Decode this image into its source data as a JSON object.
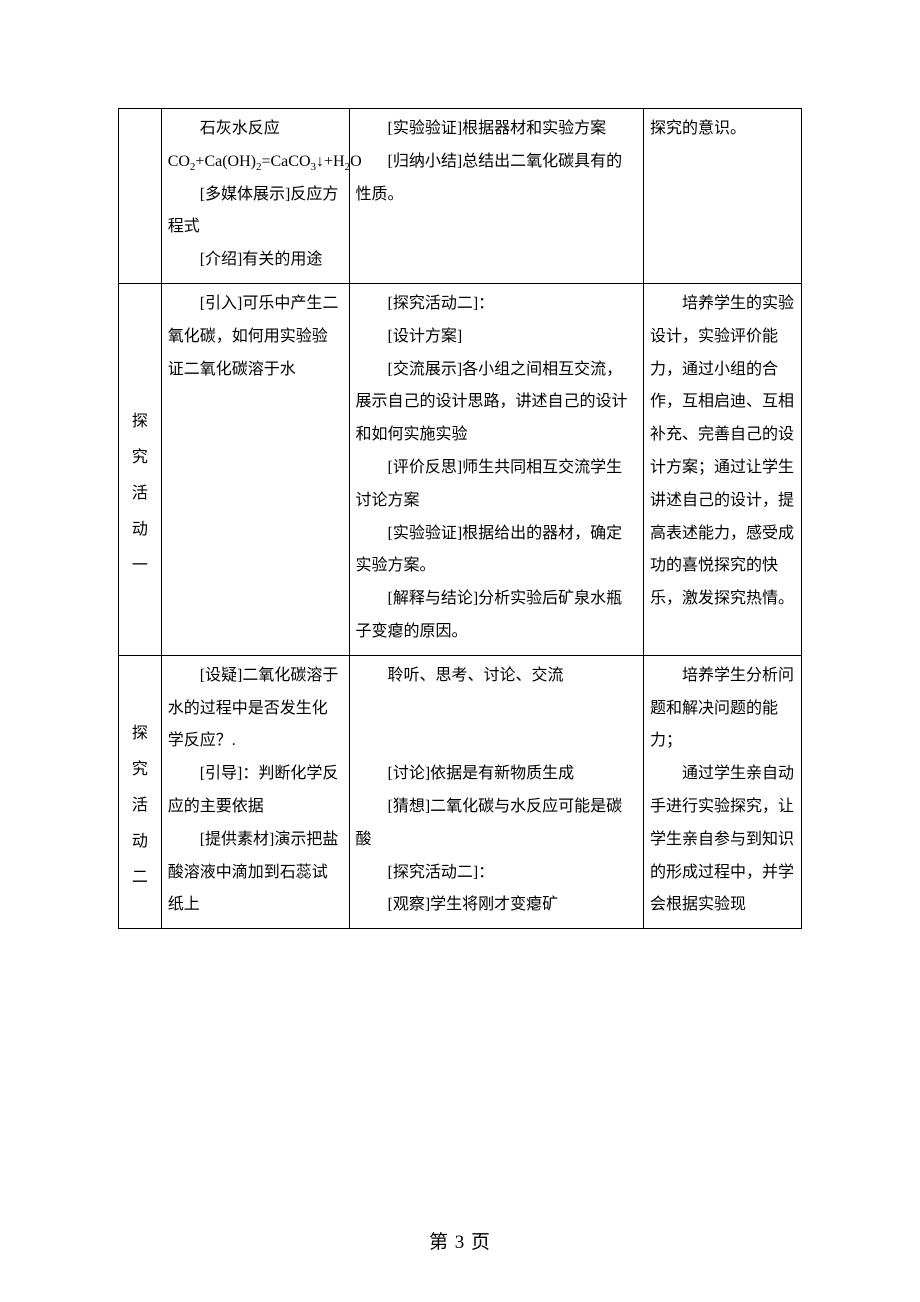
{
  "rows": [
    {
      "label_chars": [],
      "col2_paras": [
        "石灰水反应CO<sub>2</sub>+Ca(OH)<sub>2</sub>=CaCO<sub>3</sub>↓+H<sub>2</sub>O",
        "[多媒体展示]反应方程式",
        "[介绍]有关的用途"
      ],
      "col3_paras": [
        "[实验验证]根据器材和实验方案",
        "[归纳小结]总结出二氧化碳具有的性质。"
      ],
      "col4_paras": [
        "探究的意识。"
      ],
      "col4_noindent": true
    },
    {
      "label_chars": [
        "探",
        "究",
        "活",
        "动",
        "一"
      ],
      "label_pad_top": "120px",
      "col2_paras": [
        "[引入]可乐中产生二氧化碳，如何用实验验证二氧化碳溶于水"
      ],
      "col3_paras": [
        "[探究活动二]：",
        "[设计方案]",
        "[交流展示]各小组之间相互交流，展示自己的设计思路，讲述自己的设计和如何实施实验",
        "[评价反思]师生共同相互交流学生讨论方案",
        "[实验验证]根据给出的器材，确定实验方案。",
        "[解释与结论]分析实验后矿泉水瓶子变瘪的原因。"
      ],
      "col4_paras": [
        "培养学生的实验设计，实验评价能力，通过小组的合作，互相启迪、互相补充、完善自己的设计方案；通过让学生讲述自己的设计，提高表述能力，感受成功的喜悦探究的快乐，激发探究热情。"
      ]
    },
    {
      "label_chars": [
        "探",
        "究",
        "活",
        "动",
        "二"
      ],
      "label_pad_top": "60px",
      "col2_paras": [
        "[设疑]二氧化碳溶于水的过程中是否发生化学反应？.",
        "[引导]：判断化学反应的主要依据",
        "[提供素材]演示把盐酸溶液中滴加到石蕊试纸上"
      ],
      "col3_paras": [
        "聆听、思考、讨论、交流",
        "",
        "",
        "[讨论]依据是有新物质生成",
        "[猜想]二氧化碳与水反应可能是碳酸",
        "[探究活动二]：",
        "[观察]学生将刚才变瘪矿"
      ],
      "col4_paras": [
        "培养学生分析问题和解决问题的能力；",
        "通过学生亲自动手进行实验探究，让学生亲自参与到知识的形成过程中，并学会根据实验现"
      ]
    }
  ],
  "footer": "第 3 页"
}
